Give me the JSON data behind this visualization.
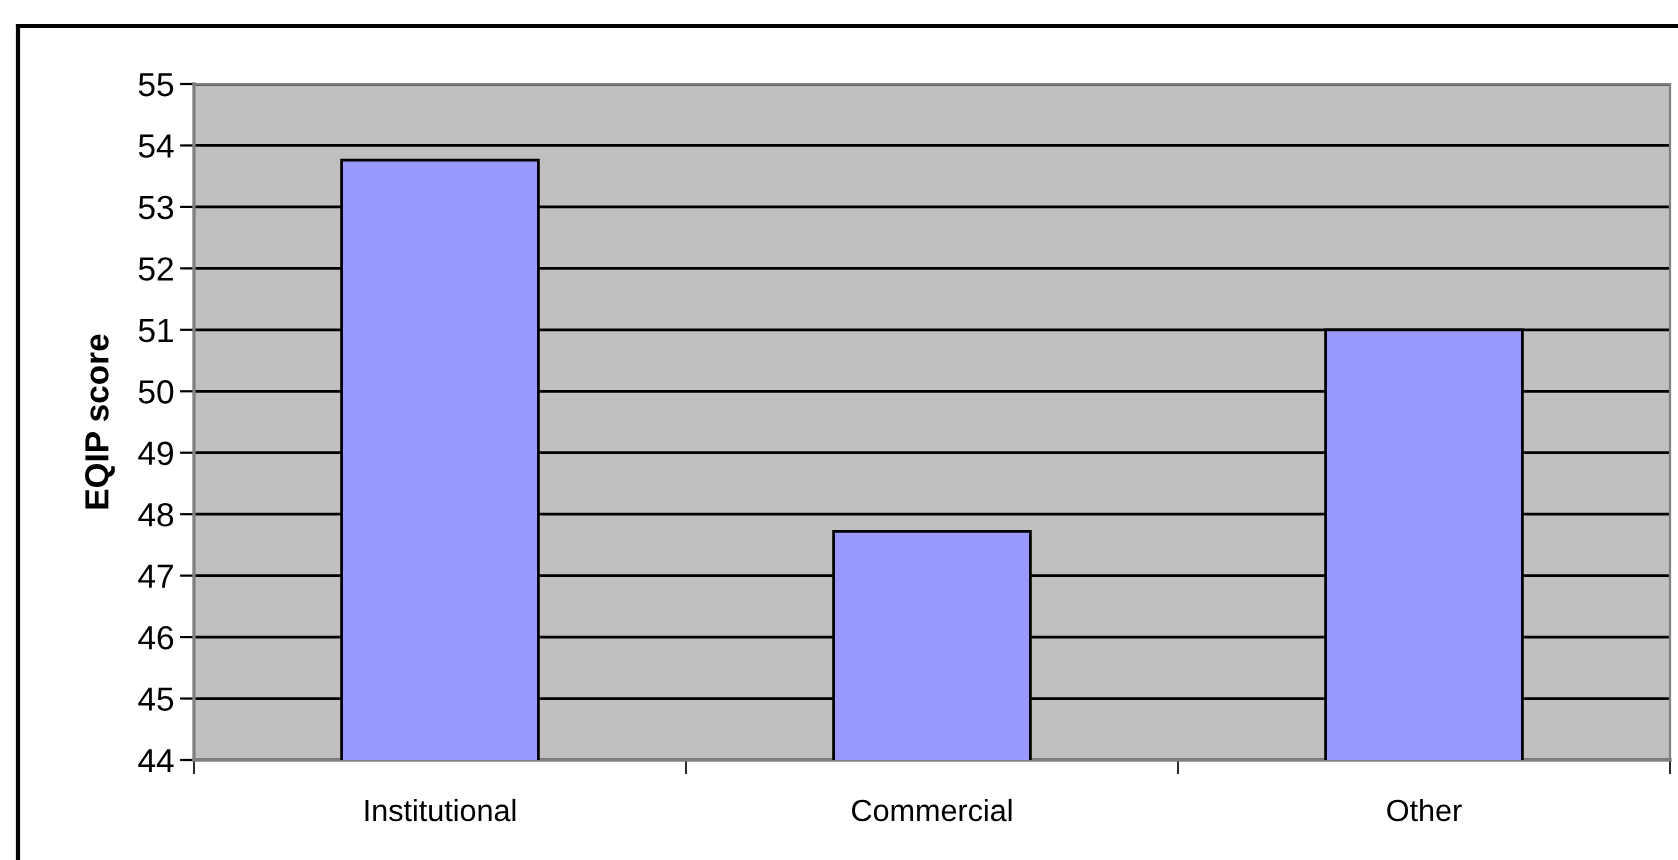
{
  "chart_data": {
    "type": "bar",
    "ylabel": "EQIP score",
    "categories": [
      "Institutional",
      "Commercial",
      "Other"
    ],
    "values": [
      53.76,
      47.72,
      51.0
    ],
    "color": "#9999ff",
    "ylim": [
      44,
      55
    ],
    "yticks": [
      44,
      45,
      46,
      47,
      48,
      49,
      50,
      51,
      52,
      53,
      54,
      55
    ],
    "grid": "y",
    "legend": false
  }
}
